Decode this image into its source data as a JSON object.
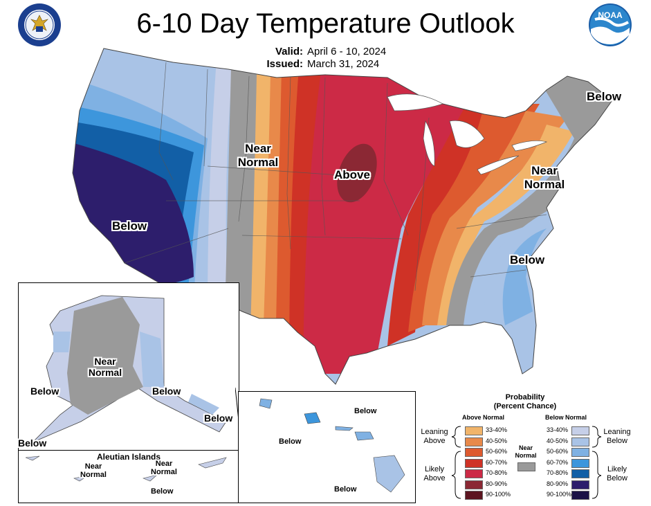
{
  "header": {
    "title": "6-10 Day Temperature Outlook",
    "valid_label": "Valid:",
    "valid_value": "April 6 - 10, 2024",
    "issued_label": "Issued:",
    "issued_value": "March 31, 2024"
  },
  "logos": {
    "left": "department-of-commerce-seal",
    "right_text": "NOAA"
  },
  "map_labels": {
    "west_below": "Below",
    "near_normal_plains_1": "Near",
    "near_normal_plains_2": "Normal",
    "above": "Above",
    "northeast_below": "Below",
    "near_normal_east_1": "Near",
    "near_normal_east_2": "Normal",
    "southeast_below": "Below"
  },
  "alaska": {
    "near_1": "Near",
    "near_2": "Normal",
    "below_west": "Below",
    "below_southeast": "Below",
    "below_panhandle": "Below",
    "below_sw": "Below"
  },
  "aleutians": {
    "title": "Aleutian Islands",
    "near_a_1": "Near",
    "near_a_2": "Normal",
    "near_b_1": "Near",
    "near_b_2": "Normal",
    "below": "Below"
  },
  "hawaii": {
    "below_1": "Below",
    "below_2": "Below",
    "below_3": "Below"
  },
  "legend": {
    "title_1": "Probability",
    "title_2": "(Percent Chance)",
    "above_header": "Above Normal",
    "below_header": "Below Normal",
    "leaning_above_1": "Leaning",
    "leaning_above_2": "Above",
    "likely_above_1": "Likely",
    "likely_above_2": "Above",
    "leaning_below_1": "Leaning",
    "leaning_below_2": "Below",
    "likely_below_1": "Likely",
    "likely_below_2": "Below",
    "near_normal_1": "Near",
    "near_normal_2": "Normal",
    "rows": [
      {
        "range": "33-40%",
        "above_color": "#f1b46a",
        "below_color": "#c6cfe8"
      },
      {
        "range": "40-50%",
        "above_color": "#e8894a",
        "below_color": "#a9c3e6"
      },
      {
        "range": "50-60%",
        "above_color": "#dd5a2f",
        "below_color": "#7fb1e3"
      },
      {
        "range": "60-70%",
        "above_color": "#cf3226",
        "below_color": "#3d96dc"
      },
      {
        "range": "70-80%",
        "above_color": "#cc2a46",
        "below_color": "#125fa6"
      },
      {
        "range": "80-90%",
        "above_color": "#8b2834",
        "below_color": "#2d1e6c"
      },
      {
        "range": "90-100%",
        "above_color": "#5c1420",
        "below_color": "#1b1245"
      }
    ],
    "near_color": "#9a9a9a"
  }
}
